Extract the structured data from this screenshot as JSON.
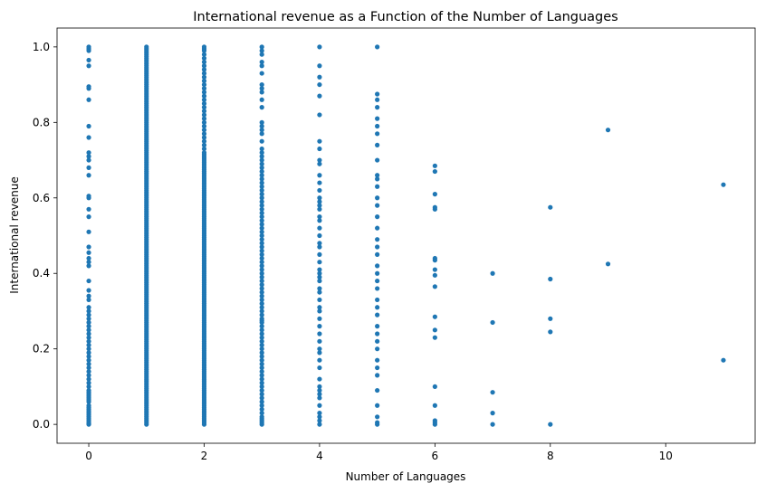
{
  "chart_data": {
    "type": "scatter",
    "title": "International revenue as a Function of the Number of Languages",
    "xlabel": "Number of Languages",
    "ylabel": "International revenue",
    "xlim": [
      -0.55,
      11.55
    ],
    "ylim": [
      -0.05,
      1.05
    ],
    "xticks": [
      0,
      2,
      4,
      6,
      8,
      10
    ],
    "xtick_labels": [
      "0",
      "2",
      "4",
      "6",
      "8",
      "10"
    ],
    "yticks": [
      0.0,
      0.2,
      0.4,
      0.6,
      0.8,
      1.0
    ],
    "ytick_labels": [
      "0.0",
      "0.2",
      "0.4",
      "0.6",
      "0.8",
      "1.0"
    ],
    "grid": false,
    "legend": "none",
    "marker_color": "#1f77b4",
    "series": [
      {
        "x_values": [
          0,
          0,
          0,
          0,
          0,
          0,
          0,
          0,
          0,
          0,
          0,
          0,
          0,
          0,
          0,
          0,
          0,
          0,
          0,
          0,
          0,
          0,
          0,
          0,
          0,
          0,
          0,
          0,
          0,
          0,
          0,
          0,
          0,
          0,
          0,
          0,
          0,
          0,
          0,
          0,
          0,
          0,
          0,
          0,
          0,
          0,
          0,
          0,
          0,
          0,
          0,
          0,
          0,
          0,
          0,
          0,
          0,
          0,
          0,
          0,
          0,
          0,
          0,
          0,
          0,
          0,
          0,
          0,
          0,
          0
        ],
        "y_values": [
          0.0,
          0.002,
          0.005,
          0.01,
          0.015,
          0.02,
          0.025,
          0.03,
          0.04,
          0.05,
          0.06,
          0.07,
          0.08,
          0.09,
          0.1,
          0.12,
          0.15,
          0.18,
          0.2,
          0.21,
          0.22,
          0.25,
          0.27,
          0.29,
          0.31,
          0.33,
          0.34,
          0.355,
          0.38,
          0.42,
          0.43,
          0.44,
          0.455,
          0.47,
          0.51,
          0.55,
          0.57,
          0.6,
          0.605,
          0.66,
          0.68,
          0.7,
          0.71,
          0.72,
          0.76,
          0.79,
          0.86,
          0.89,
          0.895,
          0.95,
          0.965,
          0.99,
          0.995,
          1.0,
          0.035,
          0.045,
          0.065,
          0.075,
          0.085,
          0.11,
          0.13,
          0.14,
          0.16,
          0.17,
          0.19,
          0.23,
          0.24,
          0.26,
          0.28,
          0.3
        ],
        "x_columns_dense": [
          1,
          2,
          3,
          4,
          5
        ],
        "column_1_y": [
          0.0,
          0.005,
          0.01,
          0.015,
          0.02,
          0.025,
          0.03,
          0.035,
          0.04,
          0.045,
          0.05,
          0.055,
          0.06,
          0.065,
          0.07,
          0.075,
          0.08,
          0.085,
          0.09,
          0.095,
          0.1,
          0.105,
          0.11,
          0.115,
          0.12,
          0.125,
          0.13,
          0.135,
          0.14,
          0.145,
          0.15,
          0.155,
          0.16,
          0.165,
          0.17,
          0.175,
          0.18,
          0.185,
          0.19,
          0.195,
          0.2,
          0.205,
          0.21,
          0.215,
          0.22,
          0.225,
          0.23,
          0.235,
          0.24,
          0.245,
          0.25,
          0.255,
          0.26,
          0.265,
          0.27,
          0.275,
          0.28,
          0.285,
          0.29,
          0.295,
          0.3,
          0.305,
          0.31,
          0.315,
          0.32,
          0.325,
          0.33,
          0.335,
          0.34,
          0.345,
          0.35,
          0.355,
          0.36,
          0.365,
          0.37,
          0.375,
          0.38,
          0.385,
          0.39,
          0.395,
          0.4,
          0.405,
          0.41,
          0.415,
          0.42,
          0.425,
          0.43,
          0.435,
          0.44,
          0.445,
          0.45,
          0.455,
          0.46,
          0.465,
          0.47,
          0.475,
          0.48,
          0.485,
          0.49,
          0.495,
          0.5,
          0.505,
          0.51,
          0.515,
          0.52,
          0.525,
          0.53,
          0.535,
          0.54,
          0.545,
          0.55,
          0.555,
          0.56,
          0.565,
          0.57,
          0.575,
          0.58,
          0.585,
          0.59,
          0.595,
          0.6,
          0.605,
          0.61,
          0.615,
          0.62,
          0.625,
          0.63,
          0.635,
          0.64,
          0.645,
          0.65,
          0.655,
          0.66,
          0.665,
          0.67,
          0.675,
          0.68,
          0.685,
          0.69,
          0.695,
          0.7,
          0.705,
          0.71,
          0.715,
          0.72,
          0.725,
          0.73,
          0.735,
          0.74,
          0.745,
          0.75,
          0.755,
          0.76,
          0.765,
          0.77,
          0.775,
          0.78,
          0.785,
          0.79,
          0.795,
          0.8,
          0.805,
          0.81,
          0.815,
          0.82,
          0.825,
          0.83,
          0.835,
          0.84,
          0.845,
          0.85,
          0.855,
          0.86,
          0.865,
          0.87,
          0.875,
          0.88,
          0.885,
          0.89,
          0.895,
          0.9,
          0.905,
          0.91,
          0.915,
          0.92,
          0.925,
          0.93,
          0.935,
          0.94,
          0.945,
          0.95,
          0.955,
          0.96,
          0.965,
          0.97,
          0.975,
          0.98,
          0.985,
          0.99,
          0.995,
          1.0
        ],
        "column_2_y": [
          0.0,
          0.005,
          0.01,
          0.015,
          0.02,
          0.025,
          0.03,
          0.035,
          0.04,
          0.045,
          0.05,
          0.055,
          0.06,
          0.065,
          0.07,
          0.075,
          0.08,
          0.085,
          0.09,
          0.095,
          0.1,
          0.105,
          0.11,
          0.115,
          0.12,
          0.125,
          0.13,
          0.135,
          0.14,
          0.145,
          0.15,
          0.155,
          0.16,
          0.165,
          0.17,
          0.175,
          0.18,
          0.185,
          0.19,
          0.195,
          0.2,
          0.205,
          0.21,
          0.215,
          0.22,
          0.225,
          0.23,
          0.235,
          0.24,
          0.245,
          0.25,
          0.255,
          0.26,
          0.265,
          0.27,
          0.275,
          0.28,
          0.285,
          0.29,
          0.295,
          0.3,
          0.305,
          0.31,
          0.315,
          0.32,
          0.325,
          0.33,
          0.335,
          0.34,
          0.345,
          0.35,
          0.355,
          0.36,
          0.365,
          0.37,
          0.375,
          0.38,
          0.385,
          0.39,
          0.395,
          0.4,
          0.405,
          0.41,
          0.415,
          0.42,
          0.425,
          0.43,
          0.435,
          0.44,
          0.445,
          0.45,
          0.455,
          0.46,
          0.465,
          0.47,
          0.475,
          0.48,
          0.485,
          0.49,
          0.495,
          0.5,
          0.505,
          0.51,
          0.515,
          0.52,
          0.525,
          0.53,
          0.535,
          0.54,
          0.545,
          0.55,
          0.555,
          0.56,
          0.565,
          0.57,
          0.575,
          0.58,
          0.585,
          0.59,
          0.595,
          0.6,
          0.605,
          0.61,
          0.615,
          0.62,
          0.625,
          0.63,
          0.635,
          0.64,
          0.645,
          0.65,
          0.655,
          0.66,
          0.665,
          0.67,
          0.675,
          0.68,
          0.685,
          0.69,
          0.695,
          0.7,
          0.705,
          0.71,
          0.715,
          0.72,
          0.73,
          0.74,
          0.75,
          0.76,
          0.77,
          0.78,
          0.79,
          0.8,
          0.81,
          0.82,
          0.83,
          0.84,
          0.85,
          0.86,
          0.87,
          0.88,
          0.89,
          0.9,
          0.91,
          0.92,
          0.93,
          0.94,
          0.95,
          0.96,
          0.97,
          0.98,
          0.99,
          0.995,
          1.0
        ],
        "column_3_y": [
          0.0,
          0.005,
          0.01,
          0.015,
          0.02,
          0.03,
          0.04,
          0.05,
          0.06,
          0.07,
          0.08,
          0.09,
          0.1,
          0.11,
          0.12,
          0.13,
          0.14,
          0.15,
          0.16,
          0.17,
          0.18,
          0.19,
          0.2,
          0.21,
          0.22,
          0.23,
          0.24,
          0.25,
          0.26,
          0.27,
          0.275,
          0.28,
          0.29,
          0.3,
          0.31,
          0.32,
          0.33,
          0.34,
          0.35,
          0.36,
          0.37,
          0.38,
          0.39,
          0.4,
          0.41,
          0.42,
          0.43,
          0.44,
          0.45,
          0.46,
          0.47,
          0.48,
          0.49,
          0.5,
          0.51,
          0.52,
          0.53,
          0.54,
          0.55,
          0.56,
          0.57,
          0.58,
          0.59,
          0.6,
          0.61,
          0.62,
          0.63,
          0.64,
          0.65,
          0.66,
          0.67,
          0.68,
          0.69,
          0.7,
          0.71,
          0.72,
          0.73,
          0.75,
          0.77,
          0.78,
          0.79,
          0.8,
          0.84,
          0.86,
          0.88,
          0.89,
          0.9,
          0.93,
          0.95,
          0.96,
          0.98,
          0.99,
          1.0
        ],
        "column_4_y": [
          0.0,
          0.01,
          0.02,
          0.03,
          0.05,
          0.07,
          0.08,
          0.09,
          0.1,
          0.12,
          0.15,
          0.17,
          0.19,
          0.2,
          0.22,
          0.24,
          0.26,
          0.28,
          0.3,
          0.31,
          0.33,
          0.35,
          0.36,
          0.38,
          0.39,
          0.4,
          0.41,
          0.43,
          0.45,
          0.47,
          0.48,
          0.5,
          0.52,
          0.54,
          0.55,
          0.57,
          0.58,
          0.59,
          0.6,
          0.62,
          0.64,
          0.66,
          0.69,
          0.7,
          0.73,
          0.75,
          0.82,
          0.87,
          0.9,
          0.92,
          0.95,
          1.0
        ],
        "column_5_y": [
          0.0,
          0.005,
          0.02,
          0.05,
          0.09,
          0.13,
          0.15,
          0.17,
          0.2,
          0.22,
          0.24,
          0.26,
          0.29,
          0.31,
          0.33,
          0.36,
          0.38,
          0.4,
          0.42,
          0.45,
          0.47,
          0.49,
          0.52,
          0.55,
          0.58,
          0.6,
          0.63,
          0.65,
          0.66,
          0.7,
          0.74,
          0.77,
          0.79,
          0.81,
          0.84,
          0.86,
          0.875,
          1.0
        ],
        "sparse_points": [
          [
            6,
            0.0
          ],
          [
            6,
            0.005
          ],
          [
            6,
            0.01
          ],
          [
            6,
            0.05
          ],
          [
            6,
            0.1
          ],
          [
            6,
            0.23
          ],
          [
            6,
            0.25
          ],
          [
            6,
            0.285
          ],
          [
            6,
            0.365
          ],
          [
            6,
            0.395
          ],
          [
            6,
            0.41
          ],
          [
            6,
            0.435
          ],
          [
            6,
            0.44
          ],
          [
            6,
            0.57
          ],
          [
            6,
            0.575
          ],
          [
            6,
            0.61
          ],
          [
            6,
            0.67
          ],
          [
            6,
            0.685
          ],
          [
            7,
            0.0
          ],
          [
            7,
            0.03
          ],
          [
            7,
            0.085
          ],
          [
            7,
            0.27
          ],
          [
            7,
            0.4
          ],
          [
            8,
            0.0
          ],
          [
            8,
            0.245
          ],
          [
            8,
            0.28
          ],
          [
            8,
            0.385
          ],
          [
            8,
            0.575
          ],
          [
            9,
            0.425
          ],
          [
            9,
            0.78
          ],
          [
            11,
            0.17
          ],
          [
            11,
            0.635
          ]
        ]
      }
    ]
  }
}
